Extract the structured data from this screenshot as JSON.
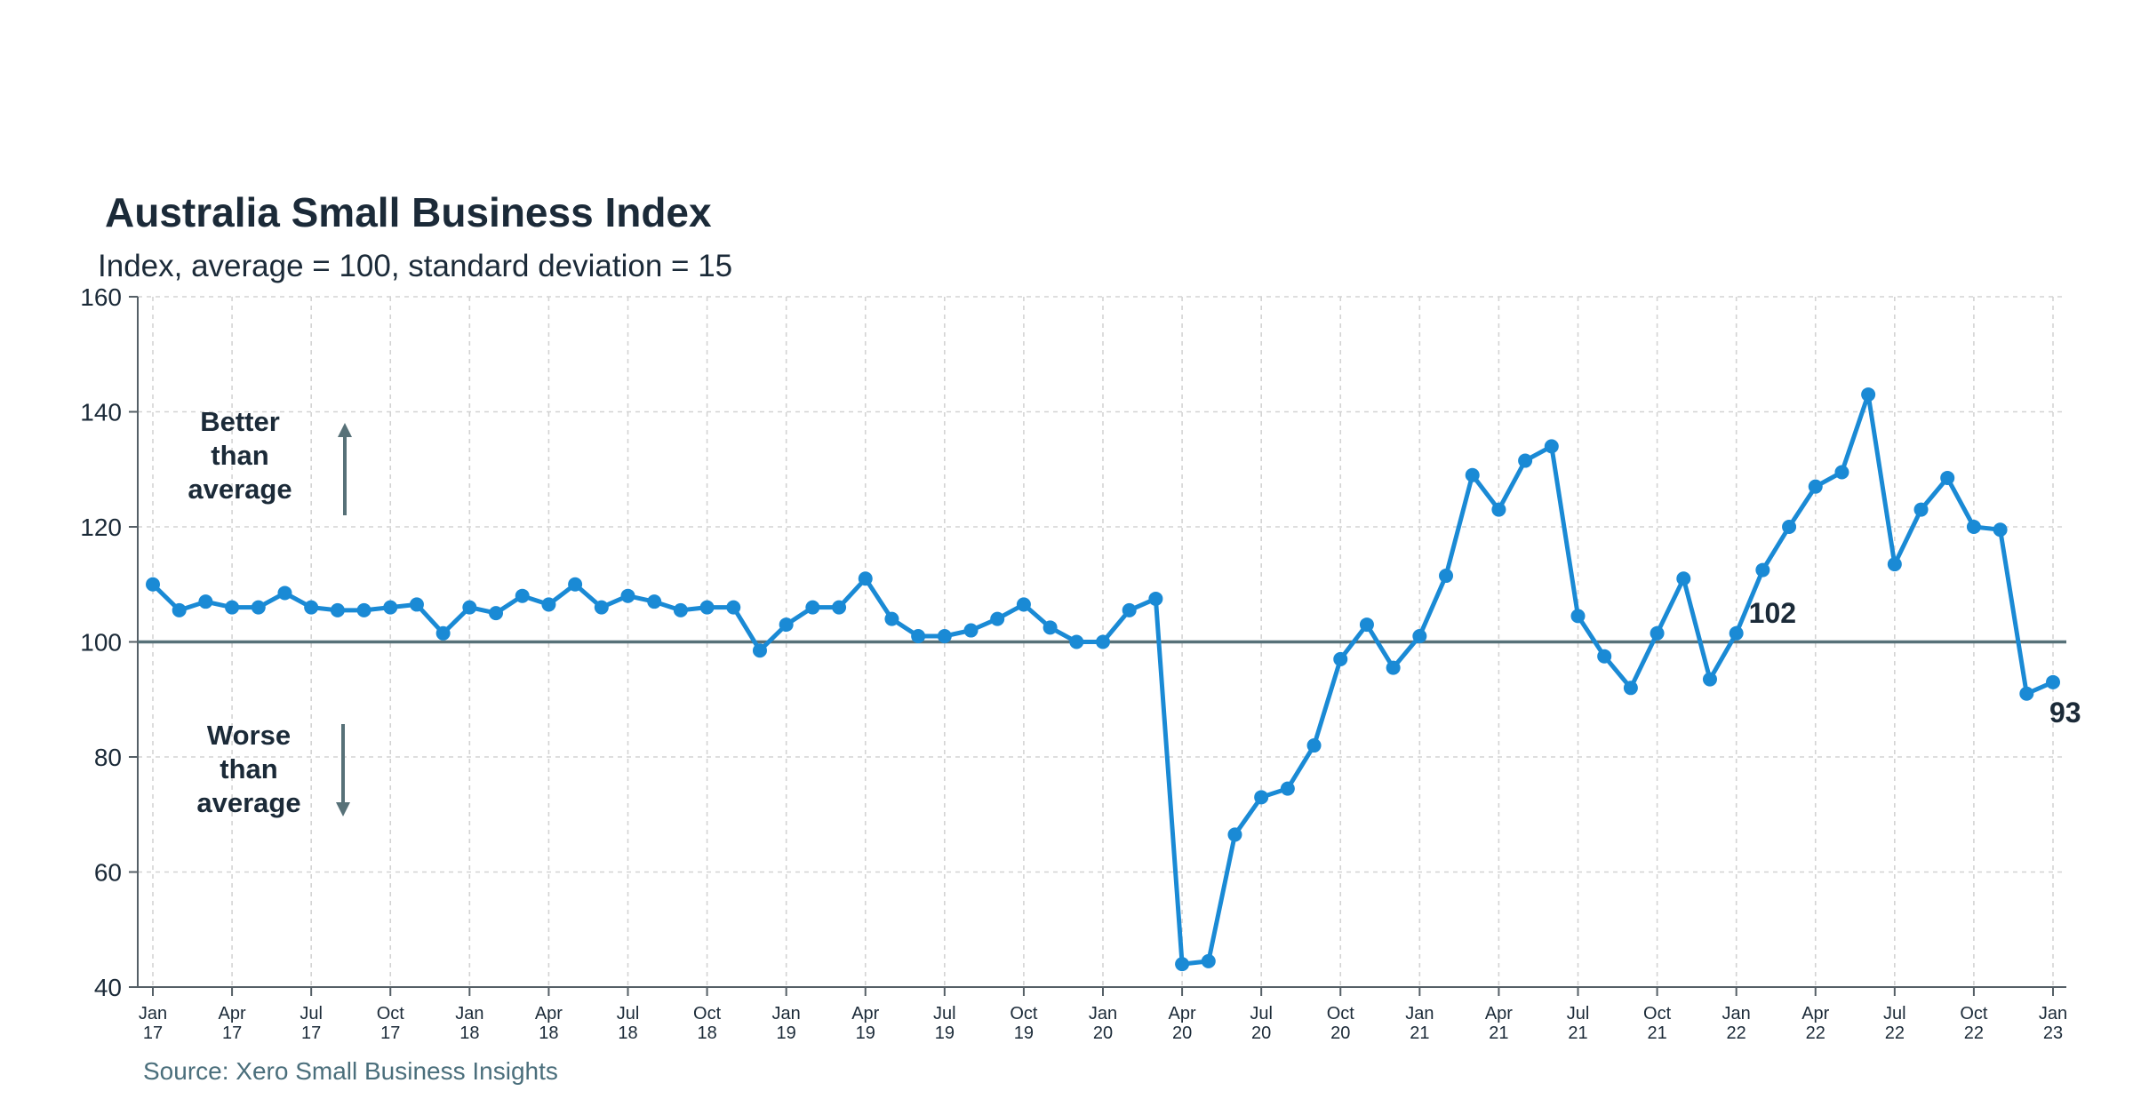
{
  "chart_data": {
    "type": "line",
    "title": "Australia Small Business Index",
    "subtitle": "Index, average = 100, standard deviation = 15",
    "source": "Source: Xero Small Business Insights",
    "ylim": [
      40,
      160
    ],
    "yticks": [
      40,
      60,
      80,
      100,
      120,
      140,
      160
    ],
    "grid": true,
    "reference_line": 100,
    "x_tick_labels": [
      [
        "Jan",
        "17"
      ],
      [
        "Apr",
        "17"
      ],
      [
        "Jul",
        "17"
      ],
      [
        "Oct",
        "17"
      ],
      [
        "Jan",
        "18"
      ],
      [
        "Apr",
        "18"
      ],
      [
        "Jul",
        "18"
      ],
      [
        "Oct",
        "18"
      ],
      [
        "Jan",
        "19"
      ],
      [
        "Apr",
        "19"
      ],
      [
        "Jul",
        "19"
      ],
      [
        "Oct",
        "19"
      ],
      [
        "Jan",
        "20"
      ],
      [
        "Apr",
        "20"
      ],
      [
        "Jul",
        "20"
      ],
      [
        "Oct",
        "20"
      ],
      [
        "Jan",
        "21"
      ],
      [
        "Apr",
        "21"
      ],
      [
        "Jul",
        "21"
      ],
      [
        "Oct",
        "21"
      ],
      [
        "Jan",
        "22"
      ],
      [
        "Apr",
        "22"
      ],
      [
        "Jul",
        "22"
      ],
      [
        "Oct",
        "22"
      ],
      [
        "Jan",
        "23"
      ]
    ],
    "x": [
      "Jan 17",
      "Feb 17",
      "Mar 17",
      "Apr 17",
      "May 17",
      "Jun 17",
      "Jul 17",
      "Aug 17",
      "Sep 17",
      "Oct 17",
      "Nov 17",
      "Dec 17",
      "Jan 18",
      "Feb 18",
      "Mar 18",
      "Apr 18",
      "May 18",
      "Jun 18",
      "Jul 18",
      "Aug 18",
      "Sep 18",
      "Oct 18",
      "Nov 18",
      "Dec 18",
      "Jan 19",
      "Feb 19",
      "Mar 19",
      "Apr 19",
      "May 19",
      "Jun 19",
      "Jul 19",
      "Aug 19",
      "Sep 19",
      "Oct 19",
      "Nov 19",
      "Dec 19",
      "Jan 20",
      "Feb 20",
      "Mar 20",
      "Apr 20",
      "May 20",
      "Jun 20",
      "Jul 20",
      "Aug 20",
      "Sep 20",
      "Oct 20",
      "Nov 20",
      "Dec 20",
      "Jan 21",
      "Feb 21",
      "Mar 21",
      "Apr 21",
      "May 21",
      "Jun 21",
      "Jul 21",
      "Aug 21",
      "Sep 21",
      "Oct 21",
      "Nov 21",
      "Dec 21",
      "Jan 22",
      "Feb 22",
      "Mar 22",
      "Apr 22",
      "May 22",
      "Jun 22",
      "Jul 22",
      "Aug 22",
      "Sep 22",
      "Oct 22",
      "Nov 22",
      "Dec 22",
      "Jan 23"
    ],
    "series": [
      {
        "color": "#1a8ad5",
        "values": [
          110,
          105.5,
          107,
          106,
          106,
          108.5,
          106,
          105.5,
          105.5,
          106,
          106.5,
          101.5,
          106,
          105,
          108,
          106.5,
          110,
          106,
          108,
          107,
          105.5,
          106,
          106,
          98.5,
          103,
          106,
          106,
          111,
          104,
          101,
          101,
          102,
          104,
          106.5,
          102.5,
          100,
          100,
          105.5,
          107.5,
          44,
          44.5,
          66.5,
          73,
          74.5,
          82,
          97,
          103,
          95.5,
          101,
          111.5,
          129,
          123,
          131.5,
          134,
          104.5,
          97.5,
          92,
          101.5,
          111,
          93.5,
          101.5,
          112.5,
          120,
          127,
          129.5,
          143,
          113.5,
          123,
          128.5,
          120,
          119.5,
          91,
          93
        ]
      }
    ],
    "data_labels": [
      {
        "index": 60,
        "text": "102"
      },
      {
        "index": 72,
        "text": "93"
      }
    ],
    "annotations": {
      "better": [
        "Better",
        "than",
        "average"
      ],
      "worse": [
        "Worse",
        "than",
        "average"
      ]
    },
    "colors": {
      "series": "#1a8ad5",
      "reference": "#577178",
      "text": "#1b2a38",
      "source": "#4b6f7c"
    }
  }
}
